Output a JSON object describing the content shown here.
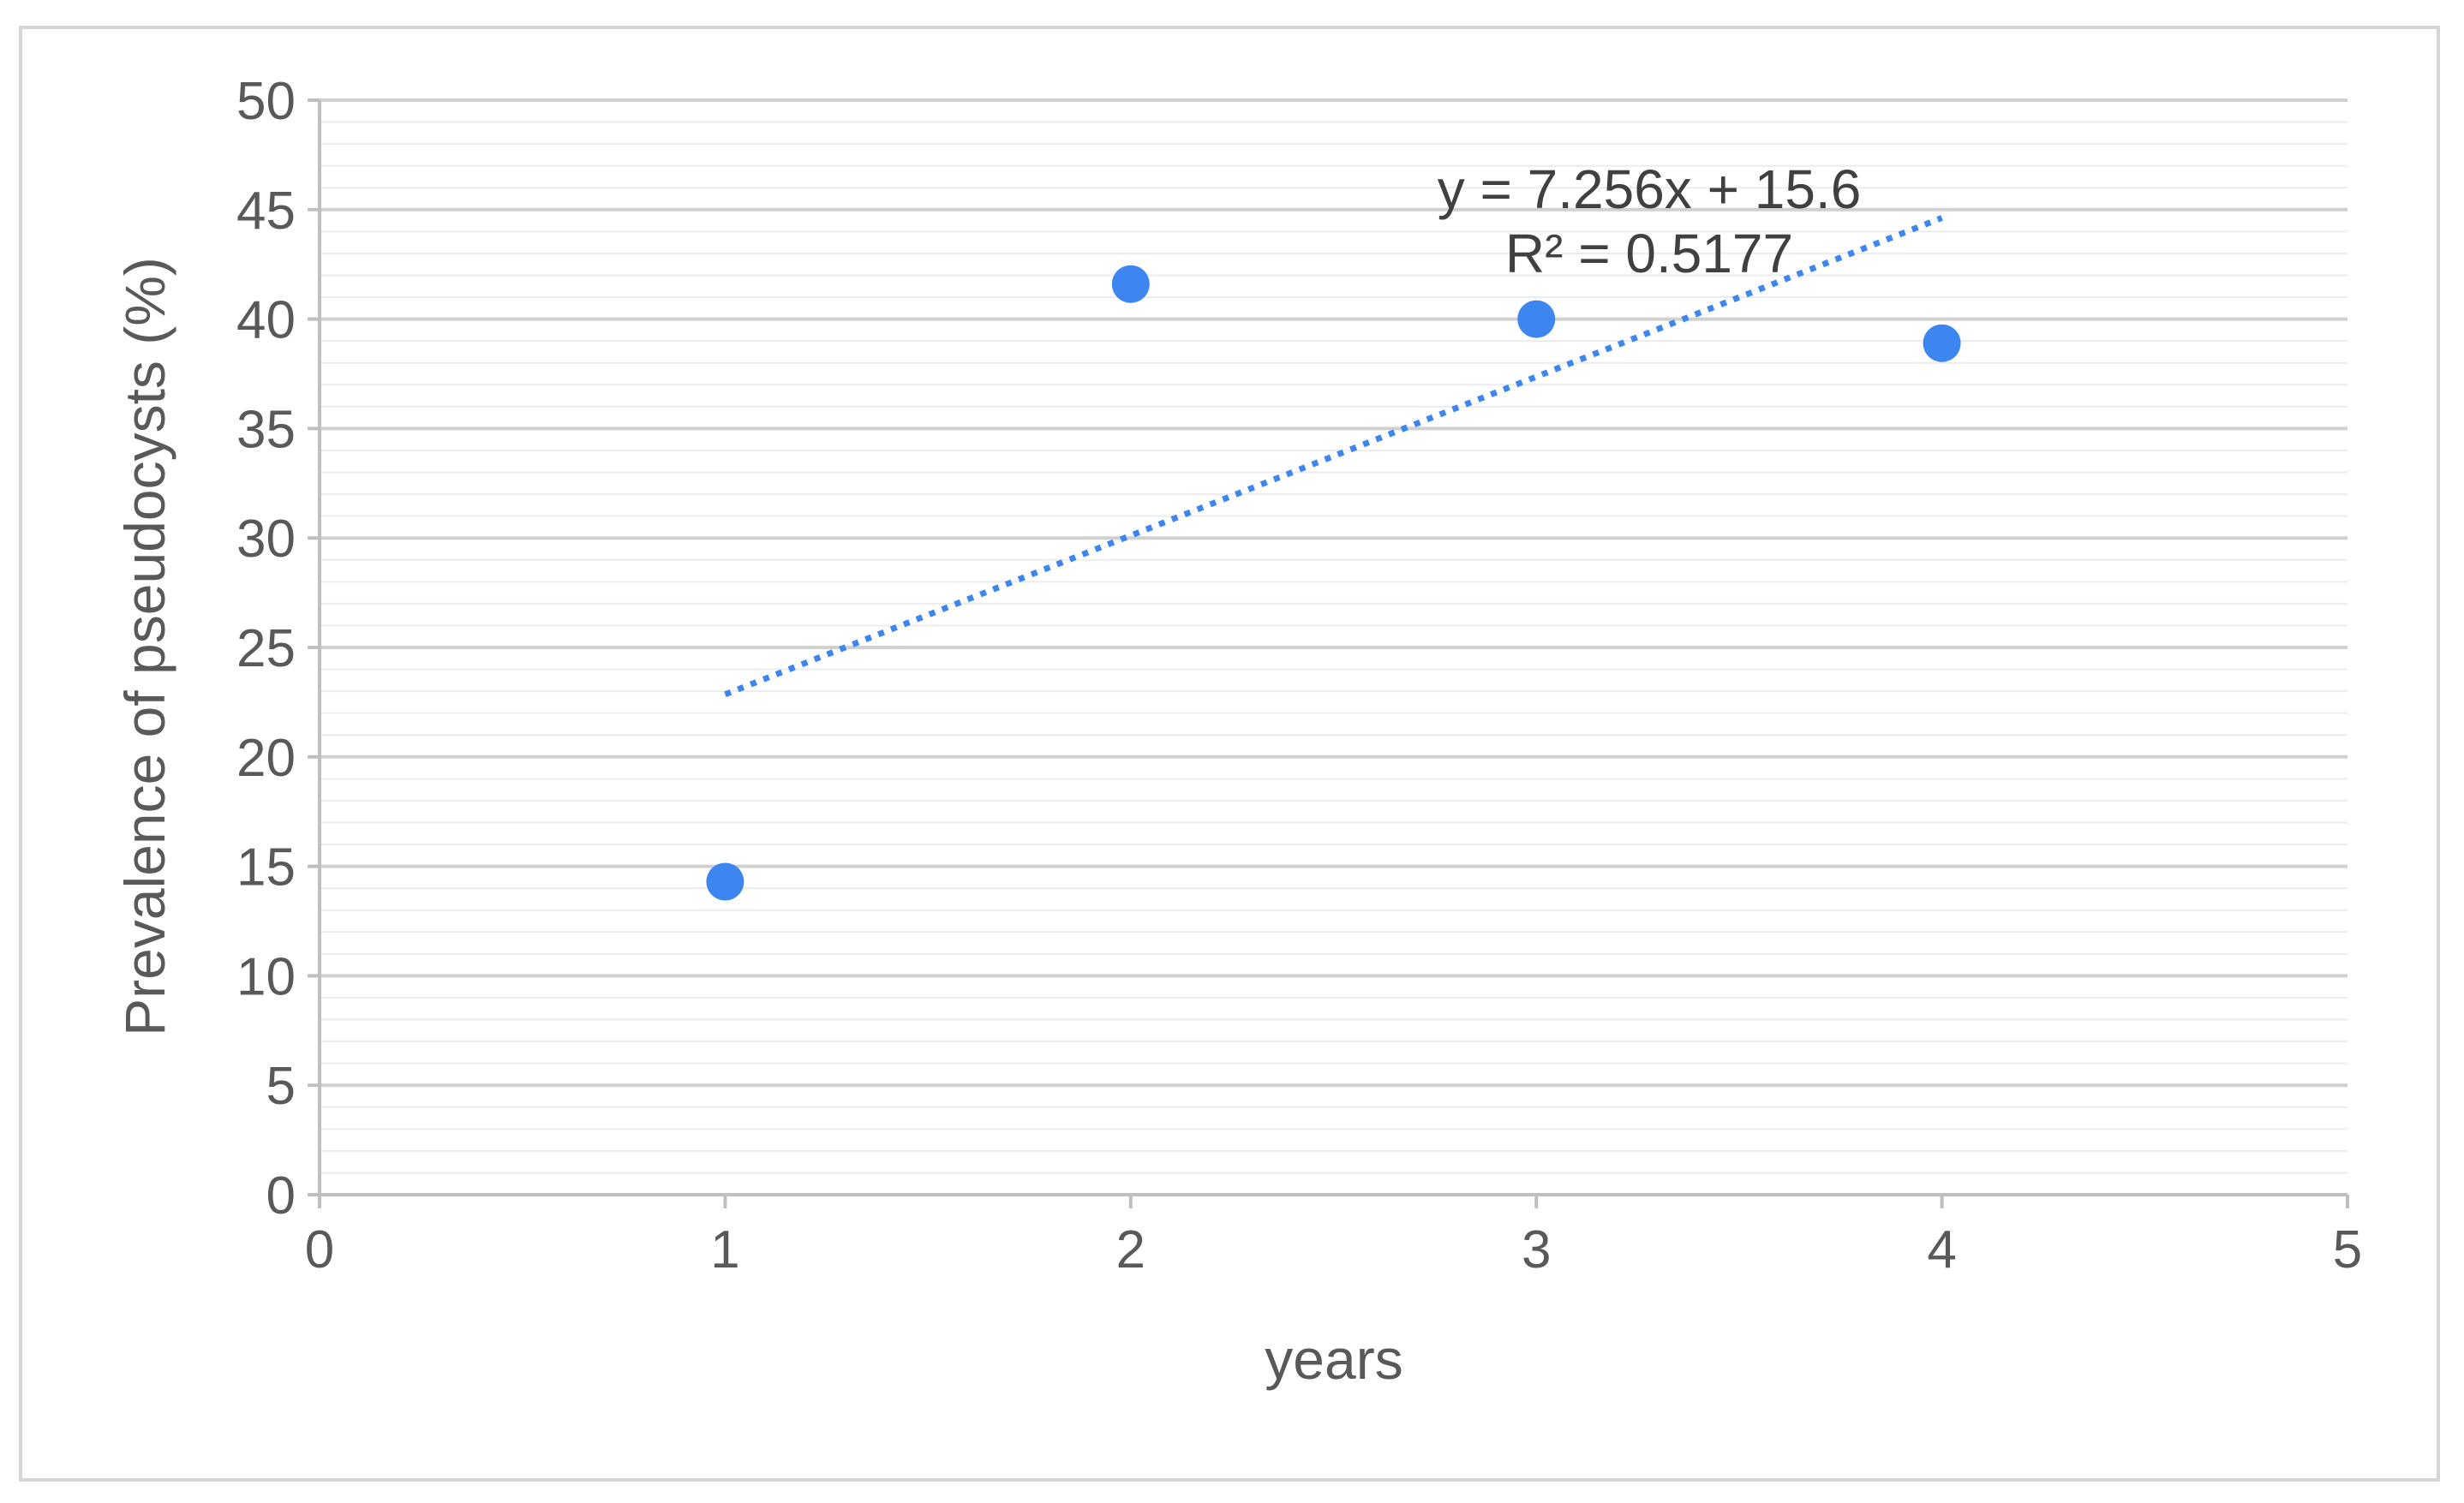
{
  "chart_data": {
    "type": "scatter",
    "title": "",
    "xlabel": "years",
    "ylabel": "Prevalence of pseudocysts (%)",
    "xlim": [
      0,
      5
    ],
    "ylim": [
      0,
      50
    ],
    "x_ticks": [
      "0",
      "1",
      "2",
      "3",
      "4",
      "5"
    ],
    "y_ticks": [
      "0",
      "5",
      "10",
      "15",
      "20",
      "25",
      "30",
      "35",
      "40",
      "45",
      "50"
    ],
    "grid": true,
    "series": [
      {
        "x": [
          1,
          2,
          3,
          4
        ],
        "y": [
          14.3,
          41.6,
          40.0,
          38.9
        ],
        "color": "#3d85f0"
      }
    ],
    "trendline": {
      "type": "linear",
      "slope": 7.256,
      "intercept": 15.6,
      "x_range": [
        1,
        4
      ],
      "style": "dotted",
      "color": "#3d85f0",
      "equation_label": "y = 7.256x + 15.6",
      "r2_label": "R² = 0.5177"
    }
  }
}
